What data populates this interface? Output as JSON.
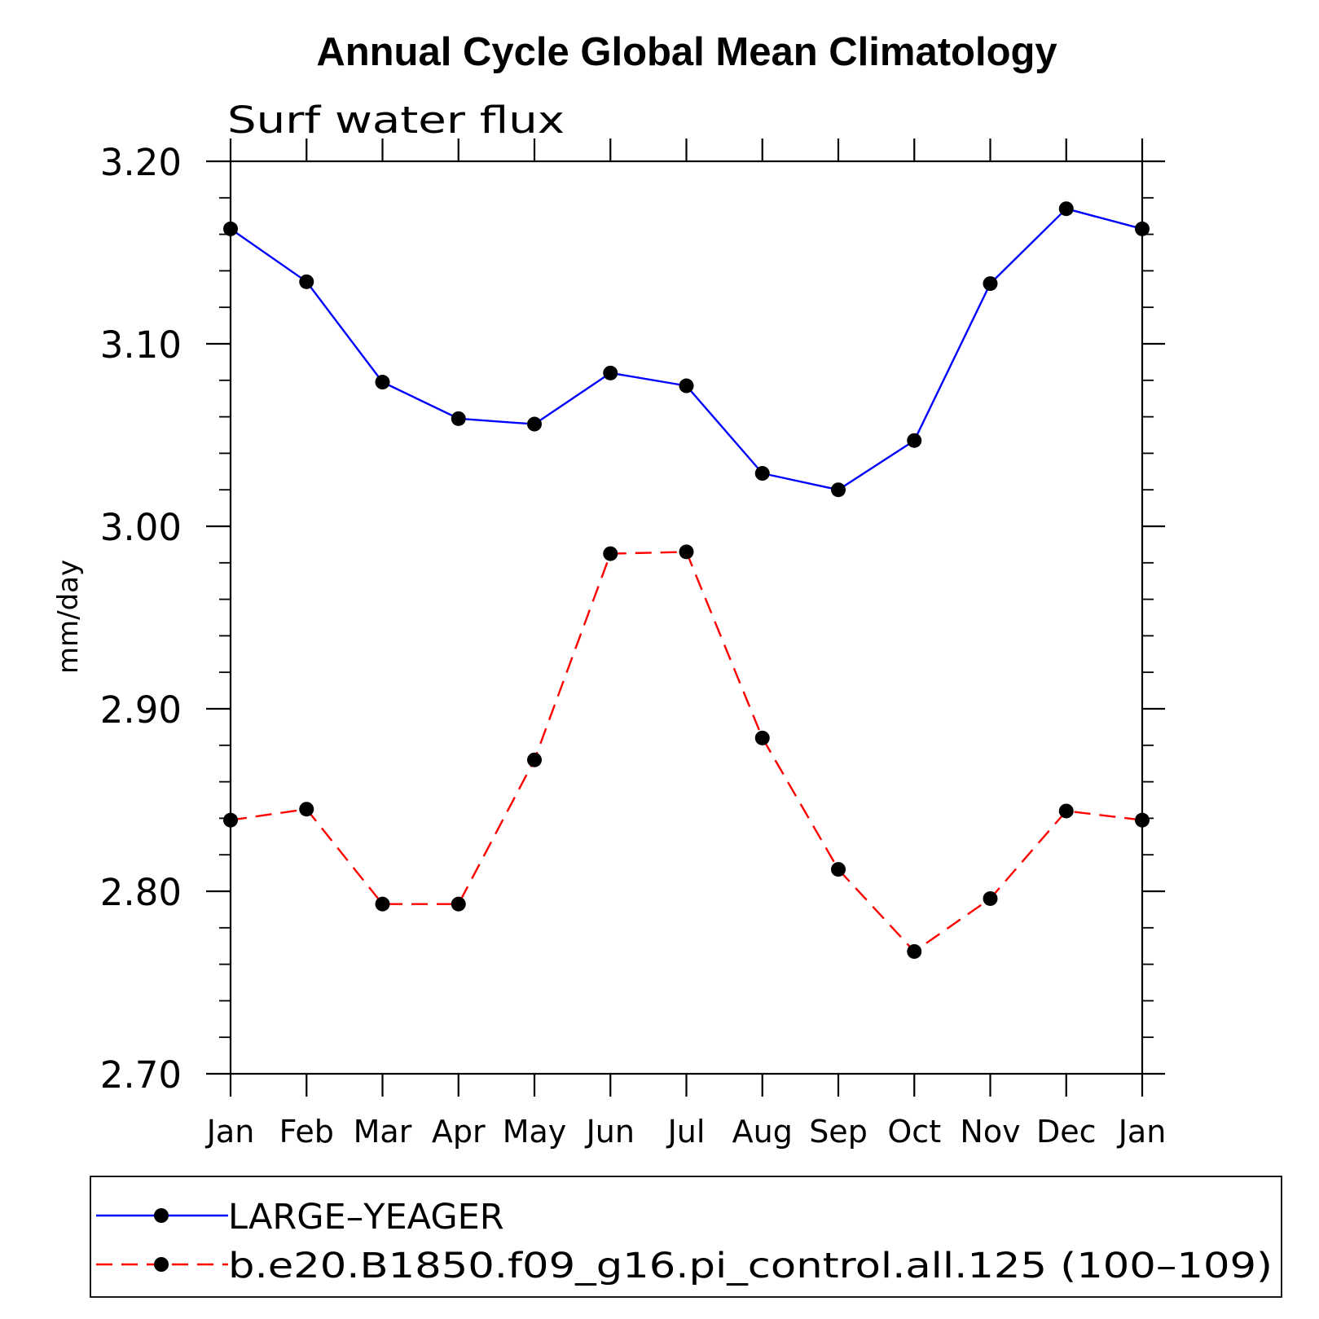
{
  "chart_data": {
    "type": "line",
    "title": "Annual Cycle Global Mean Climatology",
    "subtitle": "Surf water flux",
    "xlabel": "",
    "ylabel": "mm/day",
    "categories": [
      "Jan",
      "Feb",
      "Mar",
      "Apr",
      "May",
      "Jun",
      "Jul",
      "Aug",
      "Sep",
      "Oct",
      "Nov",
      "Dec",
      "Jan"
    ],
    "ylim": [
      2.7,
      3.2
    ],
    "yticks": [
      2.7,
      2.8,
      2.9,
      3.0,
      3.1,
      3.2
    ],
    "ytick_labels": [
      "2.70",
      "2.80",
      "2.90",
      "3.00",
      "3.10",
      "3.20"
    ],
    "y_minor_step": 0.02,
    "grid": false,
    "legend_position": "bottom",
    "series": [
      {
        "name": "LARGE–YEAGER",
        "color": "#0000ff",
        "dash": "solid",
        "marker": "filled-circle",
        "values": [
          3.163,
          3.134,
          3.079,
          3.059,
          3.056,
          3.084,
          3.077,
          3.029,
          3.02,
          3.047,
          3.133,
          3.174,
          3.163
        ]
      },
      {
        "name": "b.e20.B1850.f09_g16.pi_control.all.125 (100–109)",
        "color": "#ff0000",
        "dash": "dashed",
        "marker": "filled-circle",
        "values": [
          2.839,
          2.845,
          2.793,
          2.793,
          2.872,
          2.985,
          2.986,
          2.884,
          2.812,
          2.767,
          2.796,
          2.844,
          2.839
        ]
      }
    ]
  }
}
